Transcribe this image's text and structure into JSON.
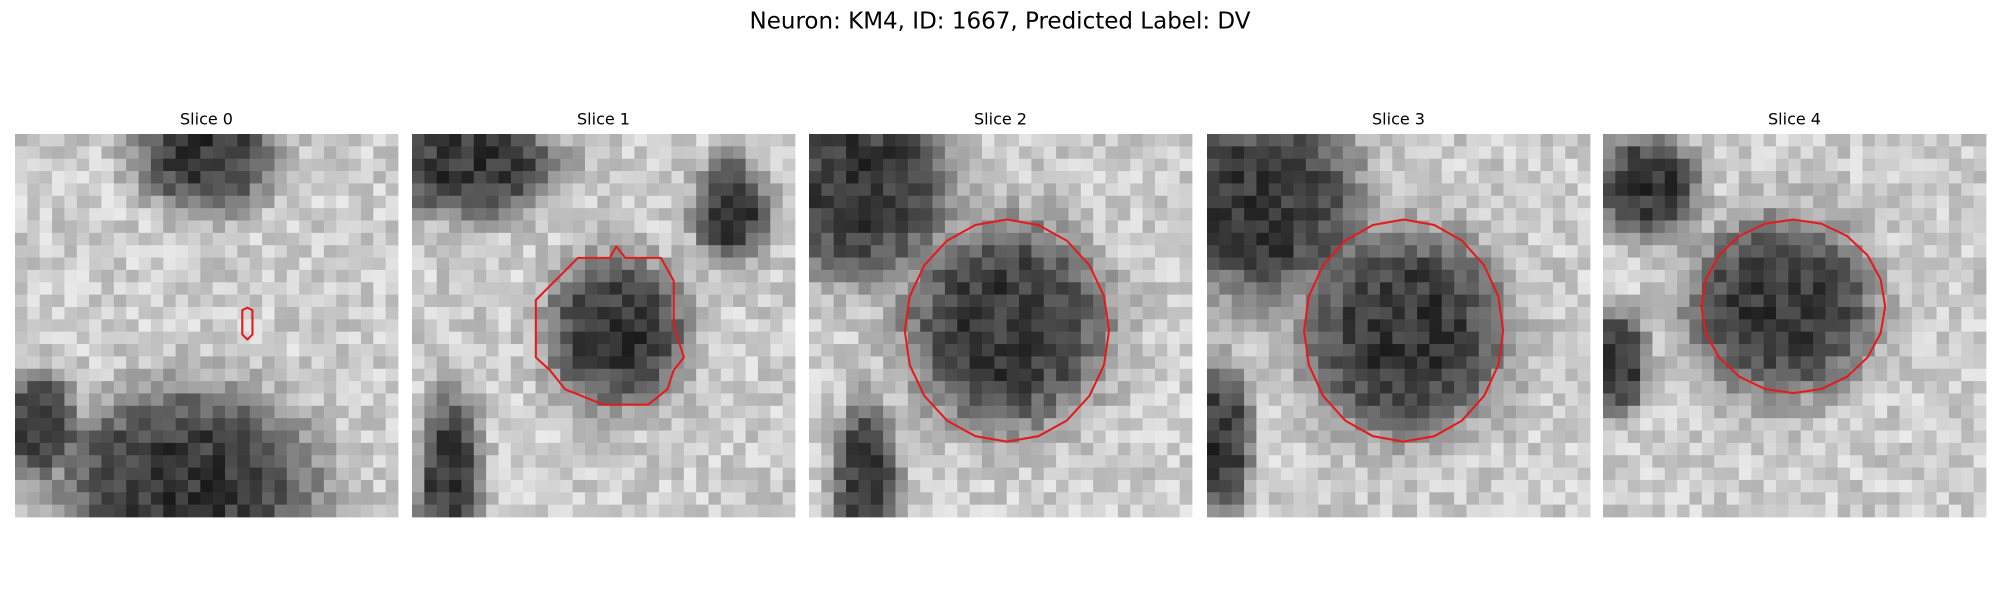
{
  "header": {
    "title": "Neuron: KM4, ID: 1667, Predicted Label: DV"
  },
  "panels": [
    {
      "title": "Slice 0"
    },
    {
      "title": "Slice 1"
    },
    {
      "title": "Slice 2"
    },
    {
      "title": "Slice 3"
    },
    {
      "title": "Slice 4"
    }
  ]
}
